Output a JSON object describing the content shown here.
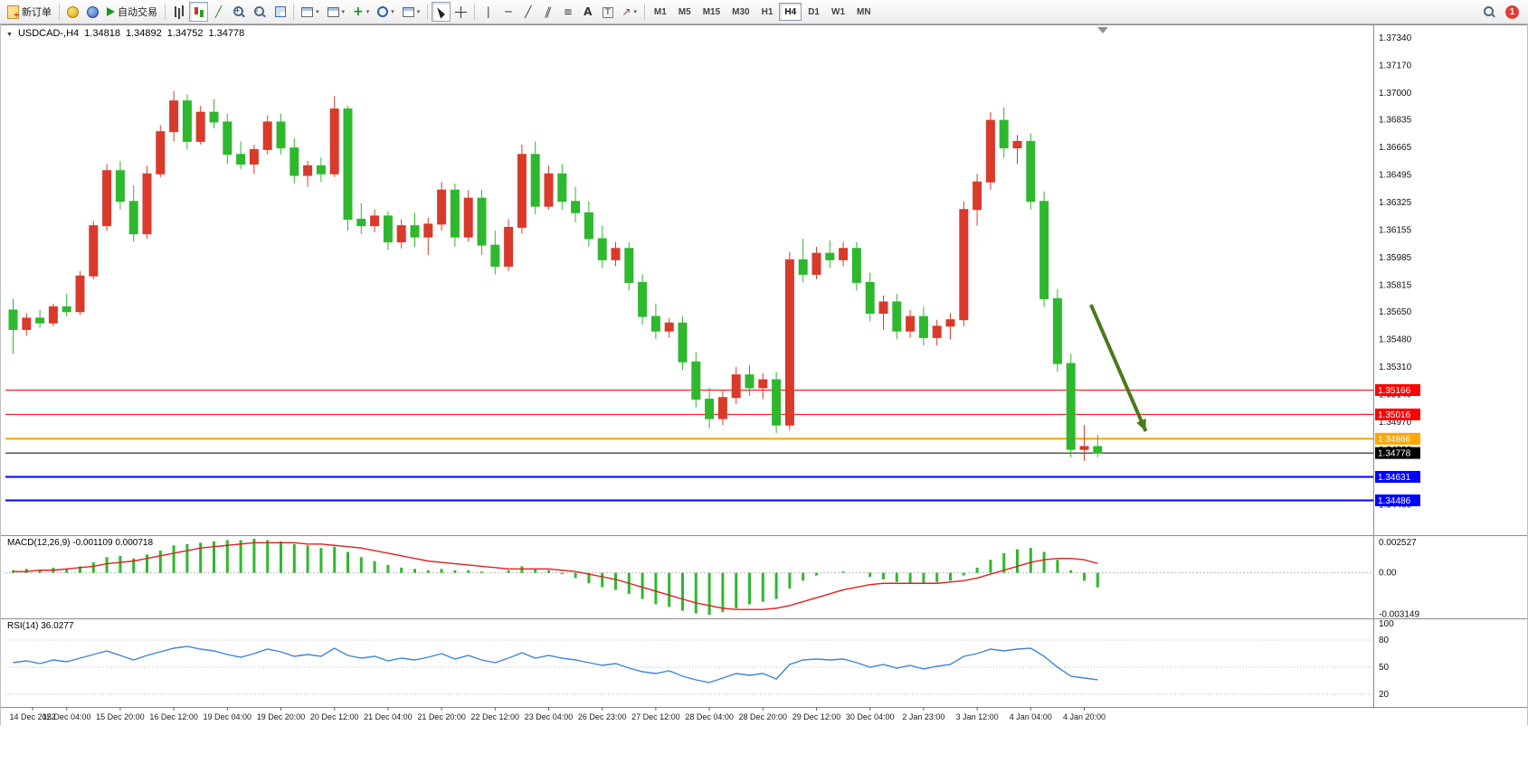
{
  "toolbar": {
    "new_order_label": "新订单",
    "autotrading_label": "自动交易",
    "timeframes": [
      "M1",
      "M5",
      "M15",
      "M30",
      "H1",
      "H4",
      "D1",
      "W1",
      "MN"
    ],
    "active_timeframe": "H4",
    "notification_count": "1"
  },
  "chart": {
    "header": {
      "symbol": "USDCAD-,H4",
      "open": "1.34818",
      "high": "1.34892",
      "low": "1.34752",
      "close": "1.34778"
    }
  },
  "macd": {
    "label": "MACD(12,26,9) -0.001109 0.000718"
  },
  "rsi": {
    "label": "RSI(14) 36.0277"
  },
  "colors": {
    "bull": "#d93a2b",
    "bear": "#2eb82e",
    "macd_hist": "#2eb82e",
    "macd_signal": "#e02020",
    "rsi_line": "#3f86d6",
    "arrow": "#4a7a1e",
    "grid_text": "#111111"
  },
  "chart_data": [
    {
      "type": "candlestick",
      "title": "USDCAD-,H4",
      "ylim": [
        1.34271,
        1.37405
      ],
      "y_ticks": [
        "1.37340",
        "1.37170",
        "1.37000",
        "1.36835",
        "1.36665",
        "1.36495",
        "1.36325",
        "1.36155",
        "1.35985",
        "1.35815",
        "1.35650",
        "1.35480",
        "1.35310",
        "1.35140",
        "1.34970",
        "1.34800",
        "1.34630",
        "1.34460"
      ],
      "x_labels": [
        "14 Dec 2022",
        "15 Dec 04:00",
        "15 Dec 20:00",
        "16 Dec 12:00",
        "19 Dec 04:00",
        "19 Dec 20:00",
        "20 Dec 12:00",
        "21 Dec 04:00",
        "21 Dec 20:00",
        "22 Dec 12:00",
        "23 Dec 04:00",
        "26 Dec 23:00",
        "27 Dec 12:00",
        "28 Dec 04:00",
        "28 Dec 20:00",
        "29 Dec 12:00",
        "30 Dec 04:00",
        "2 Jan 23:00",
        "3 Jan 12:00",
        "4 Jan 04:00",
        "4 Jan 20:00"
      ],
      "x_label_every": 4,
      "hlines": [
        {
          "price": 1.35166,
          "color": "#ff0000",
          "label": "1.35166",
          "width": 1
        },
        {
          "price": 1.35016,
          "color": "#ff0000",
          "label": "1.35016",
          "width": 1
        },
        {
          "price": 1.34866,
          "color": "#ffa500",
          "label": "1.34866",
          "width": 2
        },
        {
          "price": 1.34778,
          "color": "#000000",
          "label": "1.34778",
          "width": 1
        },
        {
          "price": 1.34631,
          "color": "#0000ff",
          "label": "1.34631",
          "width": 2
        },
        {
          "price": 1.34486,
          "color": "#0000ff",
          "label": "1.34486",
          "width": 2
        }
      ],
      "arrow": {
        "from_bar": 80.8,
        "from_price": 1.35693,
        "to_bar": 84.9,
        "to_price": 1.34912
      },
      "candles": [
        [
          1.3566,
          1.3573,
          1.3539,
          1.3554
        ],
        [
          1.3554,
          1.3564,
          1.355,
          1.3561
        ],
        [
          1.3561,
          1.3566,
          1.3555,
          1.3558
        ],
        [
          1.3558,
          1.357,
          1.3556,
          1.3568
        ],
        [
          1.3568,
          1.3576,
          1.3562,
          1.3565
        ],
        [
          1.3565,
          1.359,
          1.3563,
          1.3587
        ],
        [
          1.3587,
          1.3621,
          1.3585,
          1.3618
        ],
        [
          1.3618,
          1.3656,
          1.3615,
          1.3652
        ],
        [
          1.3652,
          1.3658,
          1.3628,
          1.3633
        ],
        [
          1.3633,
          1.3643,
          1.3608,
          1.3613
        ],
        [
          1.3613,
          1.3655,
          1.361,
          1.365
        ],
        [
          1.365,
          1.368,
          1.3648,
          1.3676
        ],
        [
          1.3676,
          1.3701,
          1.367,
          1.3695
        ],
        [
          1.3695,
          1.3699,
          1.3665,
          1.367
        ],
        [
          1.367,
          1.3692,
          1.3668,
          1.3688
        ],
        [
          1.3688,
          1.3696,
          1.3678,
          1.3682
        ],
        [
          1.3682,
          1.3687,
          1.3656,
          1.3662
        ],
        [
          1.3662,
          1.367,
          1.3653,
          1.3656
        ],
        [
          1.3656,
          1.3668,
          1.365,
          1.3665
        ],
        [
          1.3665,
          1.3686,
          1.3662,
          1.3682
        ],
        [
          1.3682,
          1.3687,
          1.3662,
          1.3666
        ],
        [
          1.3666,
          1.3672,
          1.3644,
          1.3649
        ],
        [
          1.3649,
          1.3658,
          1.3642,
          1.3655
        ],
        [
          1.3655,
          1.366,
          1.3645,
          1.365
        ],
        [
          1.365,
          1.3698,
          1.3648,
          1.369
        ],
        [
          1.369,
          1.3692,
          1.3615,
          1.3622
        ],
        [
          1.3622,
          1.3632,
          1.3613,
          1.3618
        ],
        [
          1.3618,
          1.3628,
          1.3614,
          1.3624
        ],
        [
          1.3624,
          1.3627,
          1.3603,
          1.3608
        ],
        [
          1.3608,
          1.3622,
          1.3604,
          1.3618
        ],
        [
          1.3618,
          1.3626,
          1.3605,
          1.3611
        ],
        [
          1.3611,
          1.3623,
          1.36,
          1.3619
        ],
        [
          1.3619,
          1.3645,
          1.3615,
          1.364
        ],
        [
          1.364,
          1.3644,
          1.3605,
          1.3611
        ],
        [
          1.3611,
          1.364,
          1.3608,
          1.3635
        ],
        [
          1.3635,
          1.364,
          1.36,
          1.3606
        ],
        [
          1.3606,
          1.3615,
          1.3588,
          1.3593
        ],
        [
          1.3593,
          1.3622,
          1.359,
          1.3617
        ],
        [
          1.3617,
          1.3668,
          1.3613,
          1.3662
        ],
        [
          1.3662,
          1.367,
          1.3625,
          1.363
        ],
        [
          1.363,
          1.3655,
          1.3628,
          1.365
        ],
        [
          1.365,
          1.3656,
          1.3628,
          1.3633
        ],
        [
          1.3633,
          1.3642,
          1.362,
          1.3626
        ],
        [
          1.3626,
          1.3633,
          1.3605,
          1.361
        ],
        [
          1.361,
          1.3618,
          1.3592,
          1.3597
        ],
        [
          1.3597,
          1.3608,
          1.3593,
          1.3604
        ],
        [
          1.3604,
          1.3608,
          1.3578,
          1.3583
        ],
        [
          1.3583,
          1.3588,
          1.3557,
          1.3562
        ],
        [
          1.3562,
          1.357,
          1.3548,
          1.3553
        ],
        [
          1.3553,
          1.3561,
          1.3549,
          1.3558
        ],
        [
          1.3558,
          1.3562,
          1.3529,
          1.3534
        ],
        [
          1.3534,
          1.354,
          1.3506,
          1.3511
        ],
        [
          1.3511,
          1.3518,
          1.3493,
          1.3499
        ],
        [
          1.3499,
          1.3516,
          1.3495,
          1.3512
        ],
        [
          1.3512,
          1.3531,
          1.3508,
          1.3526
        ],
        [
          1.3526,
          1.3532,
          1.3513,
          1.3518
        ],
        [
          1.3518,
          1.3527,
          1.3511,
          1.3523
        ],
        [
          1.3523,
          1.3528,
          1.349,
          1.3495
        ],
        [
          1.3495,
          1.3602,
          1.3492,
          1.3597
        ],
        [
          1.3597,
          1.361,
          1.3583,
          1.3588
        ],
        [
          1.3588,
          1.3605,
          1.3585,
          1.3601
        ],
        [
          1.3601,
          1.3609,
          1.3592,
          1.3597
        ],
        [
          1.3597,
          1.3608,
          1.3593,
          1.3604
        ],
        [
          1.3604,
          1.3608,
          1.3578,
          1.3583
        ],
        [
          1.3583,
          1.3589,
          1.3559,
          1.3564
        ],
        [
          1.3564,
          1.3575,
          1.3554,
          1.3571
        ],
        [
          1.3571,
          1.3576,
          1.3548,
          1.3553
        ],
        [
          1.3553,
          1.3566,
          1.3549,
          1.3562
        ],
        [
          1.3562,
          1.3568,
          1.3544,
          1.3549
        ],
        [
          1.3549,
          1.356,
          1.3544,
          1.3556
        ],
        [
          1.3556,
          1.3564,
          1.3548,
          1.356
        ],
        [
          1.356,
          1.3633,
          1.3556,
          1.3628
        ],
        [
          1.3628,
          1.365,
          1.3618,
          1.3645
        ],
        [
          1.3645,
          1.3688,
          1.364,
          1.3683
        ],
        [
          1.3683,
          1.3691,
          1.366,
          1.3666
        ],
        [
          1.3666,
          1.3674,
          1.3656,
          1.367
        ],
        [
          1.367,
          1.3675,
          1.3628,
          1.3633
        ],
        [
          1.3633,
          1.3639,
          1.3568,
          1.3573
        ],
        [
          1.3573,
          1.3579,
          1.3528,
          1.3533
        ],
        [
          1.3533,
          1.3539,
          1.3475,
          1.348
        ],
        [
          1.348,
          1.3495,
          1.3473,
          1.34818
        ],
        [
          1.34818,
          1.34892,
          1.34752,
          1.34778
        ]
      ]
    },
    {
      "type": "bar",
      "name": "MACD",
      "ylim": [
        -0.0032,
        0.0026
      ],
      "ticks": [
        {
          "v": 0.002527,
          "label": "0.002527"
        },
        {
          "v": 0,
          "label": "0.00"
        },
        {
          "v": -0.003149,
          "label": "-0.003149"
        }
      ],
      "values": [
        0.0002,
        0.0003,
        0.0002,
        0.0004,
        0.0003,
        0.0005,
        0.0008,
        0.0012,
        0.0013,
        0.0011,
        0.0014,
        0.0017,
        0.0021,
        0.0022,
        0.0023,
        0.0024,
        0.0025,
        0.0025,
        0.0026,
        0.0025,
        0.0024,
        0.0022,
        0.0021,
        0.0019,
        0.002,
        0.0016,
        0.0012,
        0.0009,
        0.0006,
        0.0004,
        0.0003,
        0.0002,
        0.0003,
        0.0002,
        0.0002,
        0.0001,
        0.0,
        0.0002,
        0.0005,
        0.0003,
        0.0002,
        -0.0001,
        -0.0004,
        -0.0008,
        -0.0011,
        -0.0013,
        -0.0016,
        -0.002,
        -0.0024,
        -0.0026,
        -0.0029,
        -0.0031,
        -0.0032,
        -0.003,
        -0.0027,
        -0.0024,
        -0.0022,
        -0.002,
        -0.0012,
        -0.0006,
        -0.0002,
        0.0,
        0.0001,
        0.0,
        -0.0003,
        -0.0005,
        -0.0007,
        -0.0008,
        -0.0008,
        -0.0007,
        -0.0006,
        -0.0002,
        0.0004,
        0.001,
        0.0015,
        0.0018,
        0.0019,
        0.0016,
        0.001,
        0.0002,
        -0.0006,
        -0.001109
      ],
      "signal": [
        0.0001,
        0.0001,
        0.0002,
        0.0002,
        0.0003,
        0.0004,
        0.0005,
        0.0007,
        0.0008,
        0.0009,
        0.0011,
        0.0013,
        0.0015,
        0.0017,
        0.0019,
        0.002,
        0.0021,
        0.0022,
        0.0023,
        0.0023,
        0.0023,
        0.0023,
        0.0022,
        0.0022,
        0.0021,
        0.002,
        0.0019,
        0.0017,
        0.0015,
        0.0013,
        0.0011,
        0.0009,
        0.0008,
        0.0007,
        0.0006,
        0.0005,
        0.0004,
        0.0003,
        0.0003,
        0.0003,
        0.0003,
        0.0002,
        0.0001,
        -0.0001,
        -0.0003,
        -0.0005,
        -0.0008,
        -0.0011,
        -0.0014,
        -0.0017,
        -0.002,
        -0.0023,
        -0.0025,
        -0.0027,
        -0.0028,
        -0.0028,
        -0.0028,
        -0.0027,
        -0.0025,
        -0.0022,
        -0.0019,
        -0.0016,
        -0.0013,
        -0.0011,
        -0.0009,
        -0.0008,
        -0.0008,
        -0.0008,
        -0.0008,
        -0.0008,
        -0.0007,
        -0.0006,
        -0.0004,
        -0.0001,
        0.0002,
        0.0005,
        0.0008,
        0.001,
        0.0011,
        0.0011,
        0.001,
        0.000718
      ]
    },
    {
      "type": "line",
      "name": "RSI",
      "ylim": [
        8,
        100
      ],
      "ticks": [
        {
          "v": 100,
          "label": "100"
        },
        {
          "v": 80,
          "label": "80"
        },
        {
          "v": 50,
          "label": "50"
        },
        {
          "v": 20,
          "label": "20"
        }
      ],
      "levels": [
        80,
        50,
        20
      ],
      "values": [
        55,
        57,
        54,
        58,
        56,
        60,
        64,
        68,
        63,
        58,
        63,
        67,
        71,
        73,
        70,
        68,
        64,
        61,
        65,
        70,
        67,
        62,
        64,
        62,
        71,
        63,
        60,
        62,
        57,
        60,
        58,
        61,
        65,
        59,
        63,
        58,
        55,
        60,
        66,
        60,
        63,
        60,
        58,
        55,
        52,
        54,
        49,
        45,
        43,
        46,
        40,
        36,
        33,
        38,
        43,
        41,
        43,
        37,
        53,
        58,
        59,
        58,
        59,
        55,
        50,
        53,
        49,
        52,
        48,
        51,
        53,
        62,
        65,
        70,
        68,
        70,
        71,
        62,
        50,
        40,
        38,
        36.0277
      ]
    }
  ]
}
